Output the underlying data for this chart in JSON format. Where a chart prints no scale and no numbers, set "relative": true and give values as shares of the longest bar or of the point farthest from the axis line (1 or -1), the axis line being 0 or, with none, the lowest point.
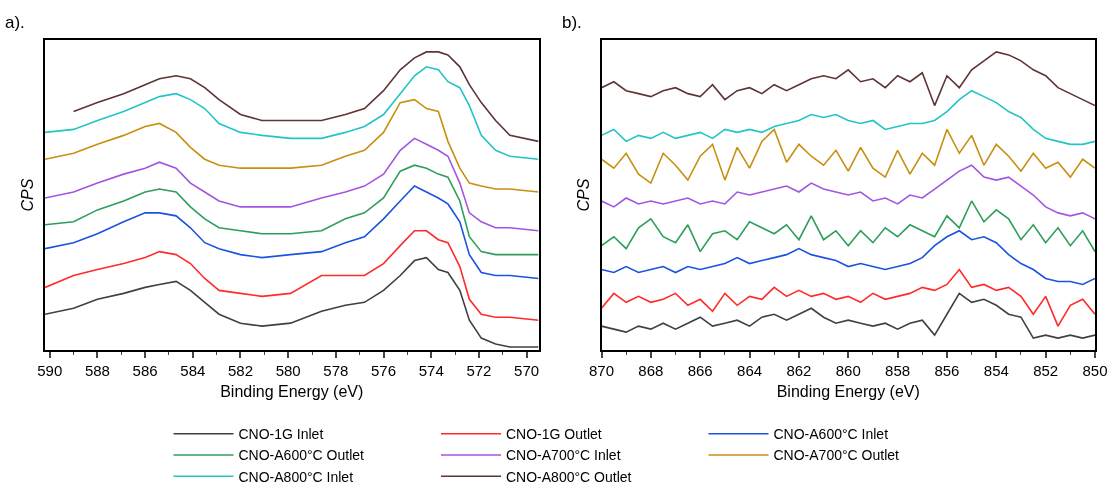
{
  "chart_data": [
    {
      "type": "line",
      "title": "a).",
      "xlabel": "Binding Energy (eV)",
      "ylabel": "CPS",
      "relative": true,
      "tick_labels": "x",
      "legend": "bottom",
      "marker": "none",
      "line_style": "solid",
      "xlim": [
        590.2,
        569.5
      ],
      "xticks": [
        590,
        588,
        586,
        584,
        582,
        580,
        578,
        576,
        574,
        572,
        570
      ],
      "x": [
        590.2,
        589.0,
        588.0,
        586.9,
        586.0,
        585.4,
        584.7,
        584.1,
        583.5,
        582.9,
        582.0,
        581.1,
        579.9,
        578.6,
        577.6,
        576.8,
        576.0,
        575.3,
        574.7,
        574.2,
        573.7,
        573.3,
        572.8,
        572.4,
        571.9,
        571.3,
        570.7,
        569.5
      ],
      "series": [
        {
          "name": "CNO-1G Inlet",
          "color": "#404040",
          "values": [
            0.12,
            0.14,
            0.17,
            0.19,
            0.21,
            0.22,
            0.23,
            0.2,
            0.16,
            0.12,
            0.09,
            0.08,
            0.09,
            0.13,
            0.15,
            0.16,
            0.2,
            0.25,
            0.3,
            0.31,
            0.27,
            0.26,
            0.2,
            0.1,
            0.04,
            0.02,
            0.01,
            0.01
          ]
        },
        {
          "name": "CNO-1G Outlet",
          "color": "#ff2a2a",
          "values": [
            0.21,
            0.25,
            0.27,
            0.29,
            0.31,
            0.33,
            0.32,
            0.29,
            0.24,
            0.2,
            0.19,
            0.18,
            0.19,
            0.25,
            0.25,
            0.25,
            0.29,
            0.35,
            0.4,
            0.4,
            0.37,
            0.36,
            0.28,
            0.17,
            0.12,
            0.11,
            0.11,
            0.1
          ]
        },
        {
          "name": "CNO-A600°C Inlet",
          "color": "#1a53e0",
          "values": [
            0.34,
            0.36,
            0.39,
            0.43,
            0.46,
            0.46,
            0.45,
            0.41,
            0.36,
            0.34,
            0.32,
            0.31,
            0.32,
            0.33,
            0.36,
            0.38,
            0.44,
            0.5,
            0.55,
            0.53,
            0.51,
            0.49,
            0.43,
            0.32,
            0.26,
            0.25,
            0.25,
            0.24
          ]
        },
        {
          "name": "CNO-A600°C Outlet",
          "color": "#2e9e5b",
          "values": [
            0.42,
            0.43,
            0.47,
            0.5,
            0.53,
            0.54,
            0.53,
            0.48,
            0.44,
            0.41,
            0.4,
            0.39,
            0.39,
            0.4,
            0.44,
            0.46,
            0.51,
            0.6,
            0.62,
            0.61,
            0.59,
            0.58,
            0.5,
            0.38,
            0.33,
            0.32,
            0.32,
            0.32
          ]
        },
        {
          "name": "CNO-A700°C Inlet",
          "color": "#a355e0",
          "values": [
            0.51,
            0.53,
            0.56,
            0.59,
            0.61,
            0.63,
            0.61,
            0.56,
            0.53,
            0.5,
            0.48,
            0.48,
            0.48,
            0.51,
            0.53,
            0.55,
            0.59,
            0.67,
            0.71,
            0.69,
            0.67,
            0.65,
            0.56,
            0.46,
            0.43,
            0.41,
            0.41,
            0.4
          ]
        },
        {
          "name": "CNO-A700°C Outlet",
          "color": "#c98f10",
          "values": [
            0.64,
            0.66,
            0.69,
            0.72,
            0.75,
            0.76,
            0.73,
            0.68,
            0.64,
            0.62,
            0.61,
            0.61,
            0.61,
            0.62,
            0.65,
            0.67,
            0.73,
            0.83,
            0.84,
            0.81,
            0.8,
            0.7,
            0.61,
            0.56,
            0.55,
            0.54,
            0.54,
            0.53
          ]
        },
        {
          "name": "CNO-A800°C Inlet",
          "color": "#22c4c8",
          "values": [
            0.73,
            0.74,
            0.77,
            0.8,
            0.83,
            0.85,
            0.86,
            0.84,
            0.81,
            0.76,
            0.73,
            0.72,
            0.71,
            0.71,
            0.73,
            0.75,
            0.79,
            0.86,
            0.92,
            0.95,
            0.94,
            0.9,
            0.88,
            0.82,
            0.72,
            0.67,
            0.65,
            0.64
          ]
        },
        {
          "name": "CNO-A800°C Outlet",
          "color": "#5e3434",
          "values": [
            null,
            0.8,
            0.83,
            0.86,
            0.89,
            0.91,
            0.92,
            0.91,
            0.88,
            0.84,
            0.79,
            0.77,
            0.77,
            0.77,
            0.79,
            0.81,
            0.87,
            0.94,
            0.98,
            1.0,
            1.0,
            0.99,
            0.95,
            0.89,
            0.83,
            0.77,
            0.72,
            0.7
          ]
        }
      ]
    },
    {
      "type": "line",
      "title": "b).",
      "xlabel": "Binding Energy (eV)",
      "ylabel": "CPS",
      "relative": true,
      "tick_labels": "x",
      "marker": "none",
      "line_style": "solid",
      "xlim": [
        870,
        850
      ],
      "xticks": [
        870,
        868,
        866,
        864,
        862,
        860,
        858,
        856,
        854,
        852,
        850
      ],
      "x": [
        870,
        869.5,
        869,
        868.5,
        868,
        867.5,
        867,
        866.5,
        866,
        865.5,
        865,
        864.5,
        864,
        863.5,
        863,
        862.5,
        862,
        861.5,
        861,
        860.5,
        860,
        859.5,
        859,
        858.5,
        858,
        857.5,
        857,
        856.5,
        856,
        855.5,
        855,
        854.5,
        854,
        853.5,
        853,
        852.5,
        852,
        851.5,
        851,
        850.5,
        850
      ],
      "series": [
        {
          "name": "CNO-1G Inlet",
          "color": "#404040",
          "values": [
            0.08,
            0.07,
            0.06,
            0.08,
            0.07,
            0.09,
            0.07,
            0.09,
            0.11,
            0.08,
            0.09,
            0.1,
            0.08,
            0.11,
            0.12,
            0.1,
            0.12,
            0.14,
            0.11,
            0.09,
            0.1,
            0.09,
            0.08,
            0.09,
            0.07,
            0.09,
            0.1,
            0.05,
            0.12,
            0.19,
            0.16,
            0.17,
            0.15,
            0.12,
            0.11,
            0.04,
            0.05,
            0.04,
            0.05,
            0.04,
            0.05
          ]
        },
        {
          "name": "CNO-1G Outlet",
          "color": "#ff2a2a",
          "values": [
            0.14,
            0.19,
            0.16,
            0.18,
            0.16,
            0.17,
            0.19,
            0.15,
            0.17,
            0.13,
            0.19,
            0.15,
            0.18,
            0.17,
            0.21,
            0.18,
            0.2,
            0.18,
            0.19,
            0.17,
            0.18,
            0.16,
            0.19,
            0.17,
            0.18,
            0.19,
            0.21,
            0.2,
            0.22,
            0.27,
            0.21,
            0.22,
            0.2,
            0.21,
            0.18,
            0.12,
            0.18,
            0.08,
            0.15,
            0.17,
            0.12
          ]
        },
        {
          "name": "CNO-A600°C Inlet",
          "color": "#1a53e0",
          "values": [
            0.27,
            0.26,
            0.28,
            0.26,
            0.27,
            0.28,
            0.26,
            0.28,
            0.27,
            0.28,
            0.29,
            0.31,
            0.29,
            0.3,
            0.31,
            0.32,
            0.34,
            0.32,
            0.31,
            0.3,
            0.28,
            0.29,
            0.28,
            0.27,
            0.28,
            0.29,
            0.31,
            0.35,
            0.38,
            0.4,
            0.37,
            0.38,
            0.36,
            0.32,
            0.29,
            0.27,
            0.24,
            0.23,
            0.23,
            0.22,
            0.24
          ]
        },
        {
          "name": "CNO-A600°C Outlet",
          "color": "#2e9e5b",
          "values": [
            0.35,
            0.38,
            0.34,
            0.41,
            0.44,
            0.38,
            0.36,
            0.42,
            0.33,
            0.39,
            0.4,
            0.37,
            0.43,
            0.41,
            0.39,
            0.42,
            0.37,
            0.45,
            0.37,
            0.4,
            0.35,
            0.4,
            0.36,
            0.41,
            0.38,
            0.42,
            0.4,
            0.38,
            0.45,
            0.41,
            0.5,
            0.43,
            0.47,
            0.44,
            0.37,
            0.42,
            0.36,
            0.41,
            0.35,
            0.4,
            0.33
          ]
        },
        {
          "name": "CNO-A700°C Inlet",
          "color": "#a355e0",
          "values": [
            0.5,
            0.48,
            0.51,
            0.49,
            0.5,
            0.49,
            0.5,
            0.51,
            0.49,
            0.5,
            0.49,
            0.53,
            0.52,
            0.53,
            0.54,
            0.55,
            0.53,
            0.56,
            0.54,
            0.53,
            0.52,
            0.53,
            0.5,
            0.51,
            0.49,
            0.52,
            0.51,
            0.54,
            0.57,
            0.6,
            0.62,
            0.58,
            0.57,
            0.58,
            0.55,
            0.52,
            0.48,
            0.46,
            0.45,
            0.46,
            0.44
          ]
        },
        {
          "name": "CNO-A700°C Outlet",
          "color": "#c98f10",
          "values": [
            0.64,
            0.61,
            0.66,
            0.59,
            0.56,
            0.66,
            0.62,
            0.57,
            0.65,
            0.69,
            0.57,
            0.68,
            0.61,
            0.7,
            0.74,
            0.63,
            0.69,
            0.65,
            0.62,
            0.67,
            0.6,
            0.68,
            0.61,
            0.58,
            0.67,
            0.59,
            0.66,
            0.62,
            0.74,
            0.66,
            0.72,
            0.62,
            0.69,
            0.65,
            0.6,
            0.66,
            0.61,
            0.63,
            0.58,
            0.64,
            0.61
          ]
        },
        {
          "name": "CNO-A800°C Inlet",
          "color": "#22c4c8",
          "values": [
            0.72,
            0.74,
            0.7,
            0.72,
            0.71,
            0.73,
            0.71,
            0.72,
            0.73,
            0.71,
            0.74,
            0.73,
            0.74,
            0.73,
            0.75,
            0.76,
            0.77,
            0.79,
            0.78,
            0.79,
            0.77,
            0.76,
            0.77,
            0.74,
            0.75,
            0.76,
            0.76,
            0.77,
            0.8,
            0.84,
            0.87,
            0.85,
            0.83,
            0.8,
            0.78,
            0.74,
            0.71,
            0.7,
            0.69,
            0.69,
            0.7
          ]
        },
        {
          "name": "CNO-A800°C Outlet",
          "color": "#5e3434",
          "values": [
            0.88,
            0.9,
            0.87,
            0.86,
            0.85,
            0.87,
            0.88,
            0.86,
            0.85,
            0.89,
            0.84,
            0.87,
            0.88,
            0.86,
            0.89,
            0.87,
            0.89,
            0.91,
            0.92,
            0.91,
            0.94,
            0.9,
            0.91,
            0.88,
            0.92,
            0.9,
            0.93,
            0.82,
            0.92,
            0.88,
            0.94,
            0.97,
            1.0,
            0.99,
            0.97,
            0.94,
            0.92,
            0.88,
            0.86,
            0.84,
            0.82
          ]
        }
      ]
    }
  ]
}
